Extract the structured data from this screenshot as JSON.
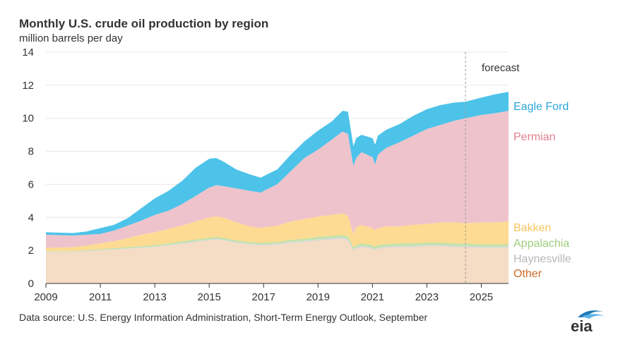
{
  "title": "Monthly U.S. crude oil production by region",
  "subtitle": "million barrels per day",
  "source": "Data source: U.S. Energy Administration, Short-Term Energy Outlook, September",
  "source_full": "Data source: U.S. Energy Information Administration, Short-Term Energy Outlook, September",
  "forecast_label": "forecast",
  "logo_text": "eia",
  "chart_data": {
    "type": "area",
    "title": "Monthly U.S. crude oil production by region",
    "ylabel": "million barrels per day",
    "xlim": [
      2009,
      2026
    ],
    "ylim": [
      0,
      14
    ],
    "forecast_start": 2024.42,
    "x_ticks": [
      "2009",
      "2011",
      "2013",
      "2015",
      "2017",
      "2019",
      "2021",
      "2023",
      "2025"
    ],
    "y_ticks": [
      "0",
      "2",
      "4",
      "6",
      "8",
      "10",
      "12",
      "14"
    ],
    "grid": true,
    "stacking_order": [
      "Other",
      "Haynesville",
      "Appalachia",
      "Bakken",
      "Permian",
      "Eagle Ford"
    ],
    "x": [
      2009.0,
      2010.0,
      2010.5,
      2011.0,
      2011.5,
      2012.0,
      2012.5,
      2013.0,
      2013.5,
      2014.0,
      2014.5,
      2015.0,
      2015.25,
      2015.5,
      2016.0,
      2016.5,
      2016.9,
      2017.0,
      2017.5,
      2018.0,
      2018.5,
      2019.0,
      2019.5,
      2019.9,
      2020.1,
      2020.3,
      2020.4,
      2020.6,
      2020.8,
      2021.0,
      2021.1,
      2021.2,
      2021.5,
      2022.0,
      2022.5,
      2023.0,
      2023.5,
      2024.0,
      2024.42,
      2025.0,
      2025.5,
      2026.0
    ],
    "cumulative": [
      [
        1.9,
        1.9,
        1.95,
        2.0,
        2.05,
        2.1,
        2.15,
        2.2,
        2.3,
        2.4,
        2.5,
        2.6,
        2.65,
        2.6,
        2.45,
        2.35,
        2.3,
        2.3,
        2.35,
        2.45,
        2.5,
        2.6,
        2.65,
        2.7,
        2.6,
        2.0,
        2.1,
        2.2,
        2.15,
        2.1,
        2.0,
        2.1,
        2.15,
        2.2,
        2.2,
        2.25,
        2.25,
        2.2,
        2.2,
        2.15,
        2.15,
        2.15
      ],
      [
        1.93,
        1.93,
        1.98,
        2.03,
        2.08,
        2.13,
        2.18,
        2.24,
        2.34,
        2.45,
        2.56,
        2.66,
        2.71,
        2.66,
        2.51,
        2.41,
        2.36,
        2.36,
        2.41,
        2.52,
        2.58,
        2.68,
        2.74,
        2.79,
        2.69,
        2.08,
        2.18,
        2.28,
        2.23,
        2.18,
        2.08,
        2.18,
        2.23,
        2.28,
        2.28,
        2.33,
        2.33,
        2.28,
        2.28,
        2.23,
        2.23,
        2.23
      ],
      [
        1.96,
        1.96,
        2.02,
        2.08,
        2.14,
        2.2,
        2.26,
        2.32,
        2.43,
        2.55,
        2.66,
        2.77,
        2.82,
        2.77,
        2.61,
        2.51,
        2.46,
        2.46,
        2.52,
        2.64,
        2.71,
        2.82,
        2.88,
        2.94,
        2.84,
        2.2,
        2.31,
        2.42,
        2.37,
        2.32,
        2.21,
        2.32,
        2.38,
        2.43,
        2.43,
        2.48,
        2.48,
        2.42,
        2.42,
        2.37,
        2.37,
        2.37
      ],
      [
        2.15,
        2.2,
        2.3,
        2.42,
        2.56,
        2.75,
        2.95,
        3.1,
        3.3,
        3.5,
        3.75,
        4.0,
        4.05,
        4.0,
        3.7,
        3.45,
        3.35,
        3.4,
        3.5,
        3.75,
        3.9,
        4.05,
        4.15,
        4.25,
        4.1,
        3.0,
        3.4,
        3.55,
        3.45,
        3.35,
        3.2,
        3.35,
        3.45,
        3.45,
        3.55,
        3.6,
        3.7,
        3.7,
        3.65,
        3.7,
        3.7,
        3.75
      ],
      [
        2.95,
        2.9,
        2.95,
        3.0,
        3.2,
        3.5,
        3.8,
        4.15,
        4.4,
        4.8,
        5.3,
        5.8,
        5.95,
        5.9,
        5.75,
        5.6,
        5.5,
        5.6,
        6.0,
        6.8,
        7.6,
        8.1,
        8.7,
        9.2,
        9.05,
        7.1,
        7.6,
        7.95,
        7.8,
        7.65,
        7.2,
        7.8,
        8.2,
        8.55,
        8.95,
        9.35,
        9.6,
        9.85,
        10.0,
        10.2,
        10.3,
        10.45
      ],
      [
        3.1,
        3.05,
        3.15,
        3.35,
        3.55,
        3.95,
        4.55,
        5.15,
        5.6,
        6.2,
        7.0,
        7.55,
        7.6,
        7.4,
        6.9,
        6.6,
        6.4,
        6.5,
        6.9,
        7.8,
        8.6,
        9.25,
        9.8,
        10.45,
        10.4,
        8.3,
        8.8,
        9.0,
        8.9,
        8.8,
        8.4,
        8.95,
        9.3,
        9.65,
        10.15,
        10.55,
        10.8,
        10.95,
        11.0,
        11.25,
        11.45,
        11.6
      ]
    ],
    "series": [
      {
        "name": "Other",
        "color": "#f5dcc4",
        "label_color": "#c96d26",
        "values_at_end": 2.15
      },
      {
        "name": "Haynesville",
        "color": "#d9d9d9",
        "label_color": "#b8b8b8",
        "values_at_end": 0.08
      },
      {
        "name": "Appalachia",
        "color": "#c2e2a9",
        "label_color": "#9fcd7d",
        "values_at_end": 0.14
      },
      {
        "name": "Bakken",
        "color": "#fddb92",
        "label_color": "#f7c55c",
        "values_at_end": 1.38
      },
      {
        "name": "Permian",
        "color": "#efc3cb",
        "label_color": "#e0808f",
        "values_at_end": 6.7
      },
      {
        "name": "Eagle Ford",
        "color": "#4dc3ea",
        "label_color": "#2aa7dc",
        "values_at_end": 1.15
      }
    ],
    "legend_placement": "right, aligned with series ends",
    "axis_color": "#333333",
    "grid_color": "#e6e6e6"
  }
}
